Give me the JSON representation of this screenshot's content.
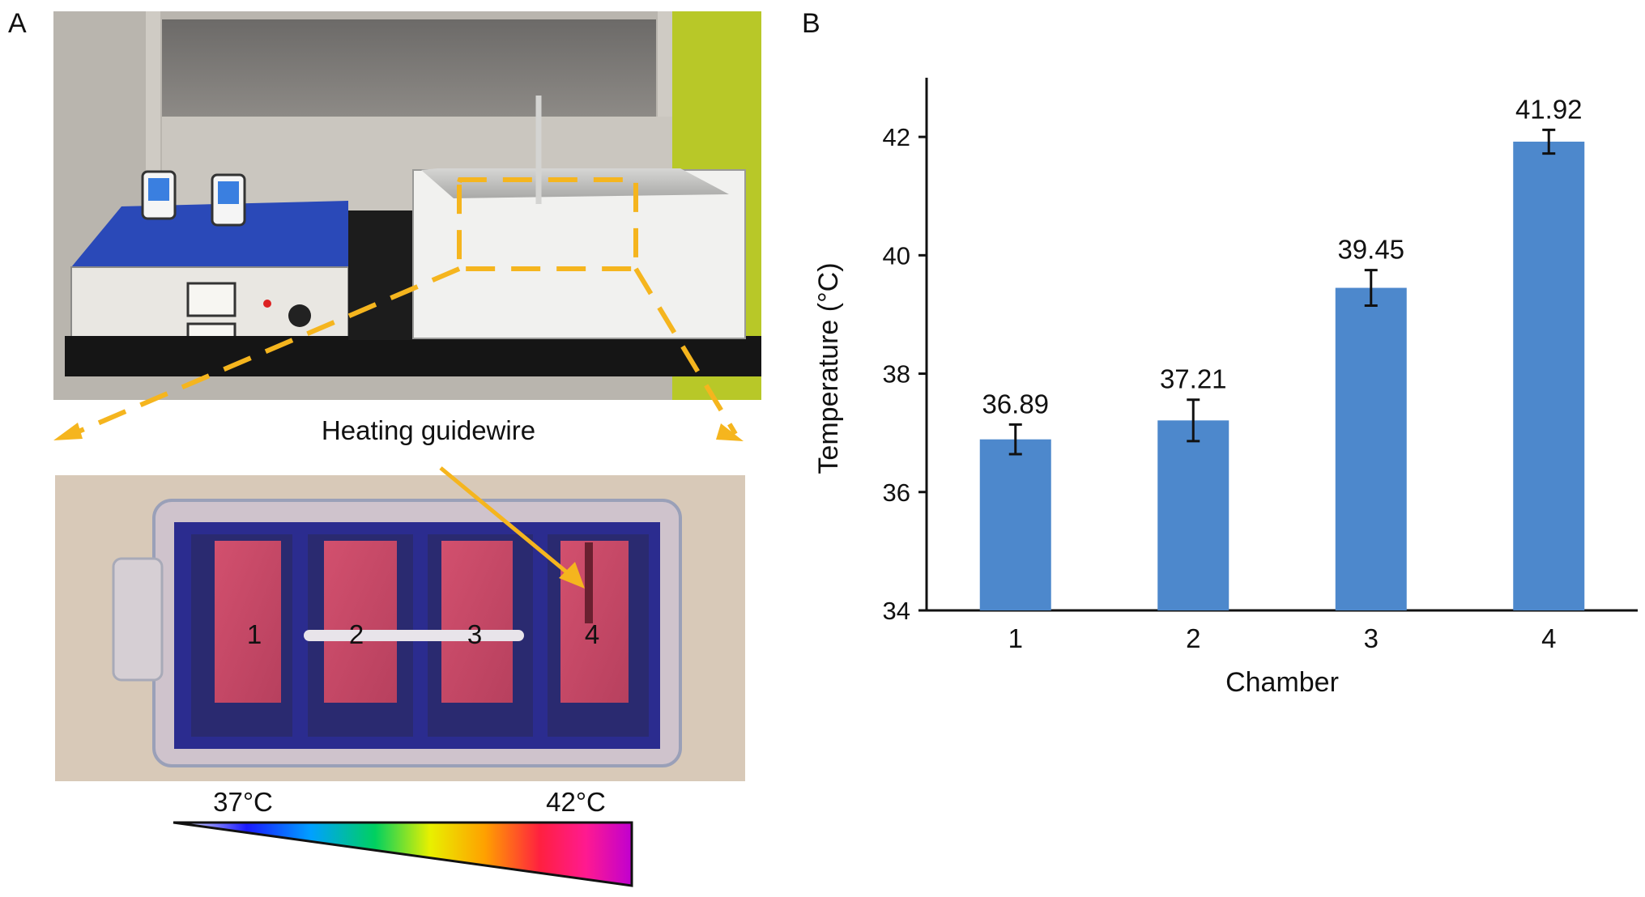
{
  "panel_a": {
    "label": "A",
    "photo_top": {
      "description": "lab bench heating apparatus",
      "tray_outline_color": "#f5b51e"
    },
    "arrow_label": "Heating guidewire",
    "chamber_labels": [
      "1",
      "2",
      "3",
      "4"
    ],
    "gradient_bar": {
      "min_label": "37°C",
      "max_label": "42°C",
      "colors": [
        "#ffffff",
        "#1a1aff",
        "#00a0ff",
        "#00d060",
        "#e8f000",
        "#ffa000",
        "#ff2040",
        "#ff1a90",
        "#c000d0"
      ]
    }
  },
  "panel_b": {
    "label": "B"
  },
  "chart_data": {
    "type": "bar",
    "categories": [
      "1",
      "2",
      "3",
      "4"
    ],
    "values": [
      36.89,
      37.21,
      39.45,
      41.92
    ],
    "value_labels": [
      "36.89",
      "37.21",
      "39.45",
      "41.92"
    ],
    "error": [
      0.25,
      0.35,
      0.3,
      0.2
    ],
    "xlabel": "Chamber",
    "ylabel": "Temperature (°C)",
    "ylim": [
      34,
      43
    ],
    "yticks": [
      34,
      36,
      38,
      40,
      42
    ],
    "ytick_labels": [
      "34",
      "36",
      "38",
      "40",
      "42"
    ],
    "bar_color": "#4d88cc",
    "grid": false,
    "legend": "none"
  }
}
